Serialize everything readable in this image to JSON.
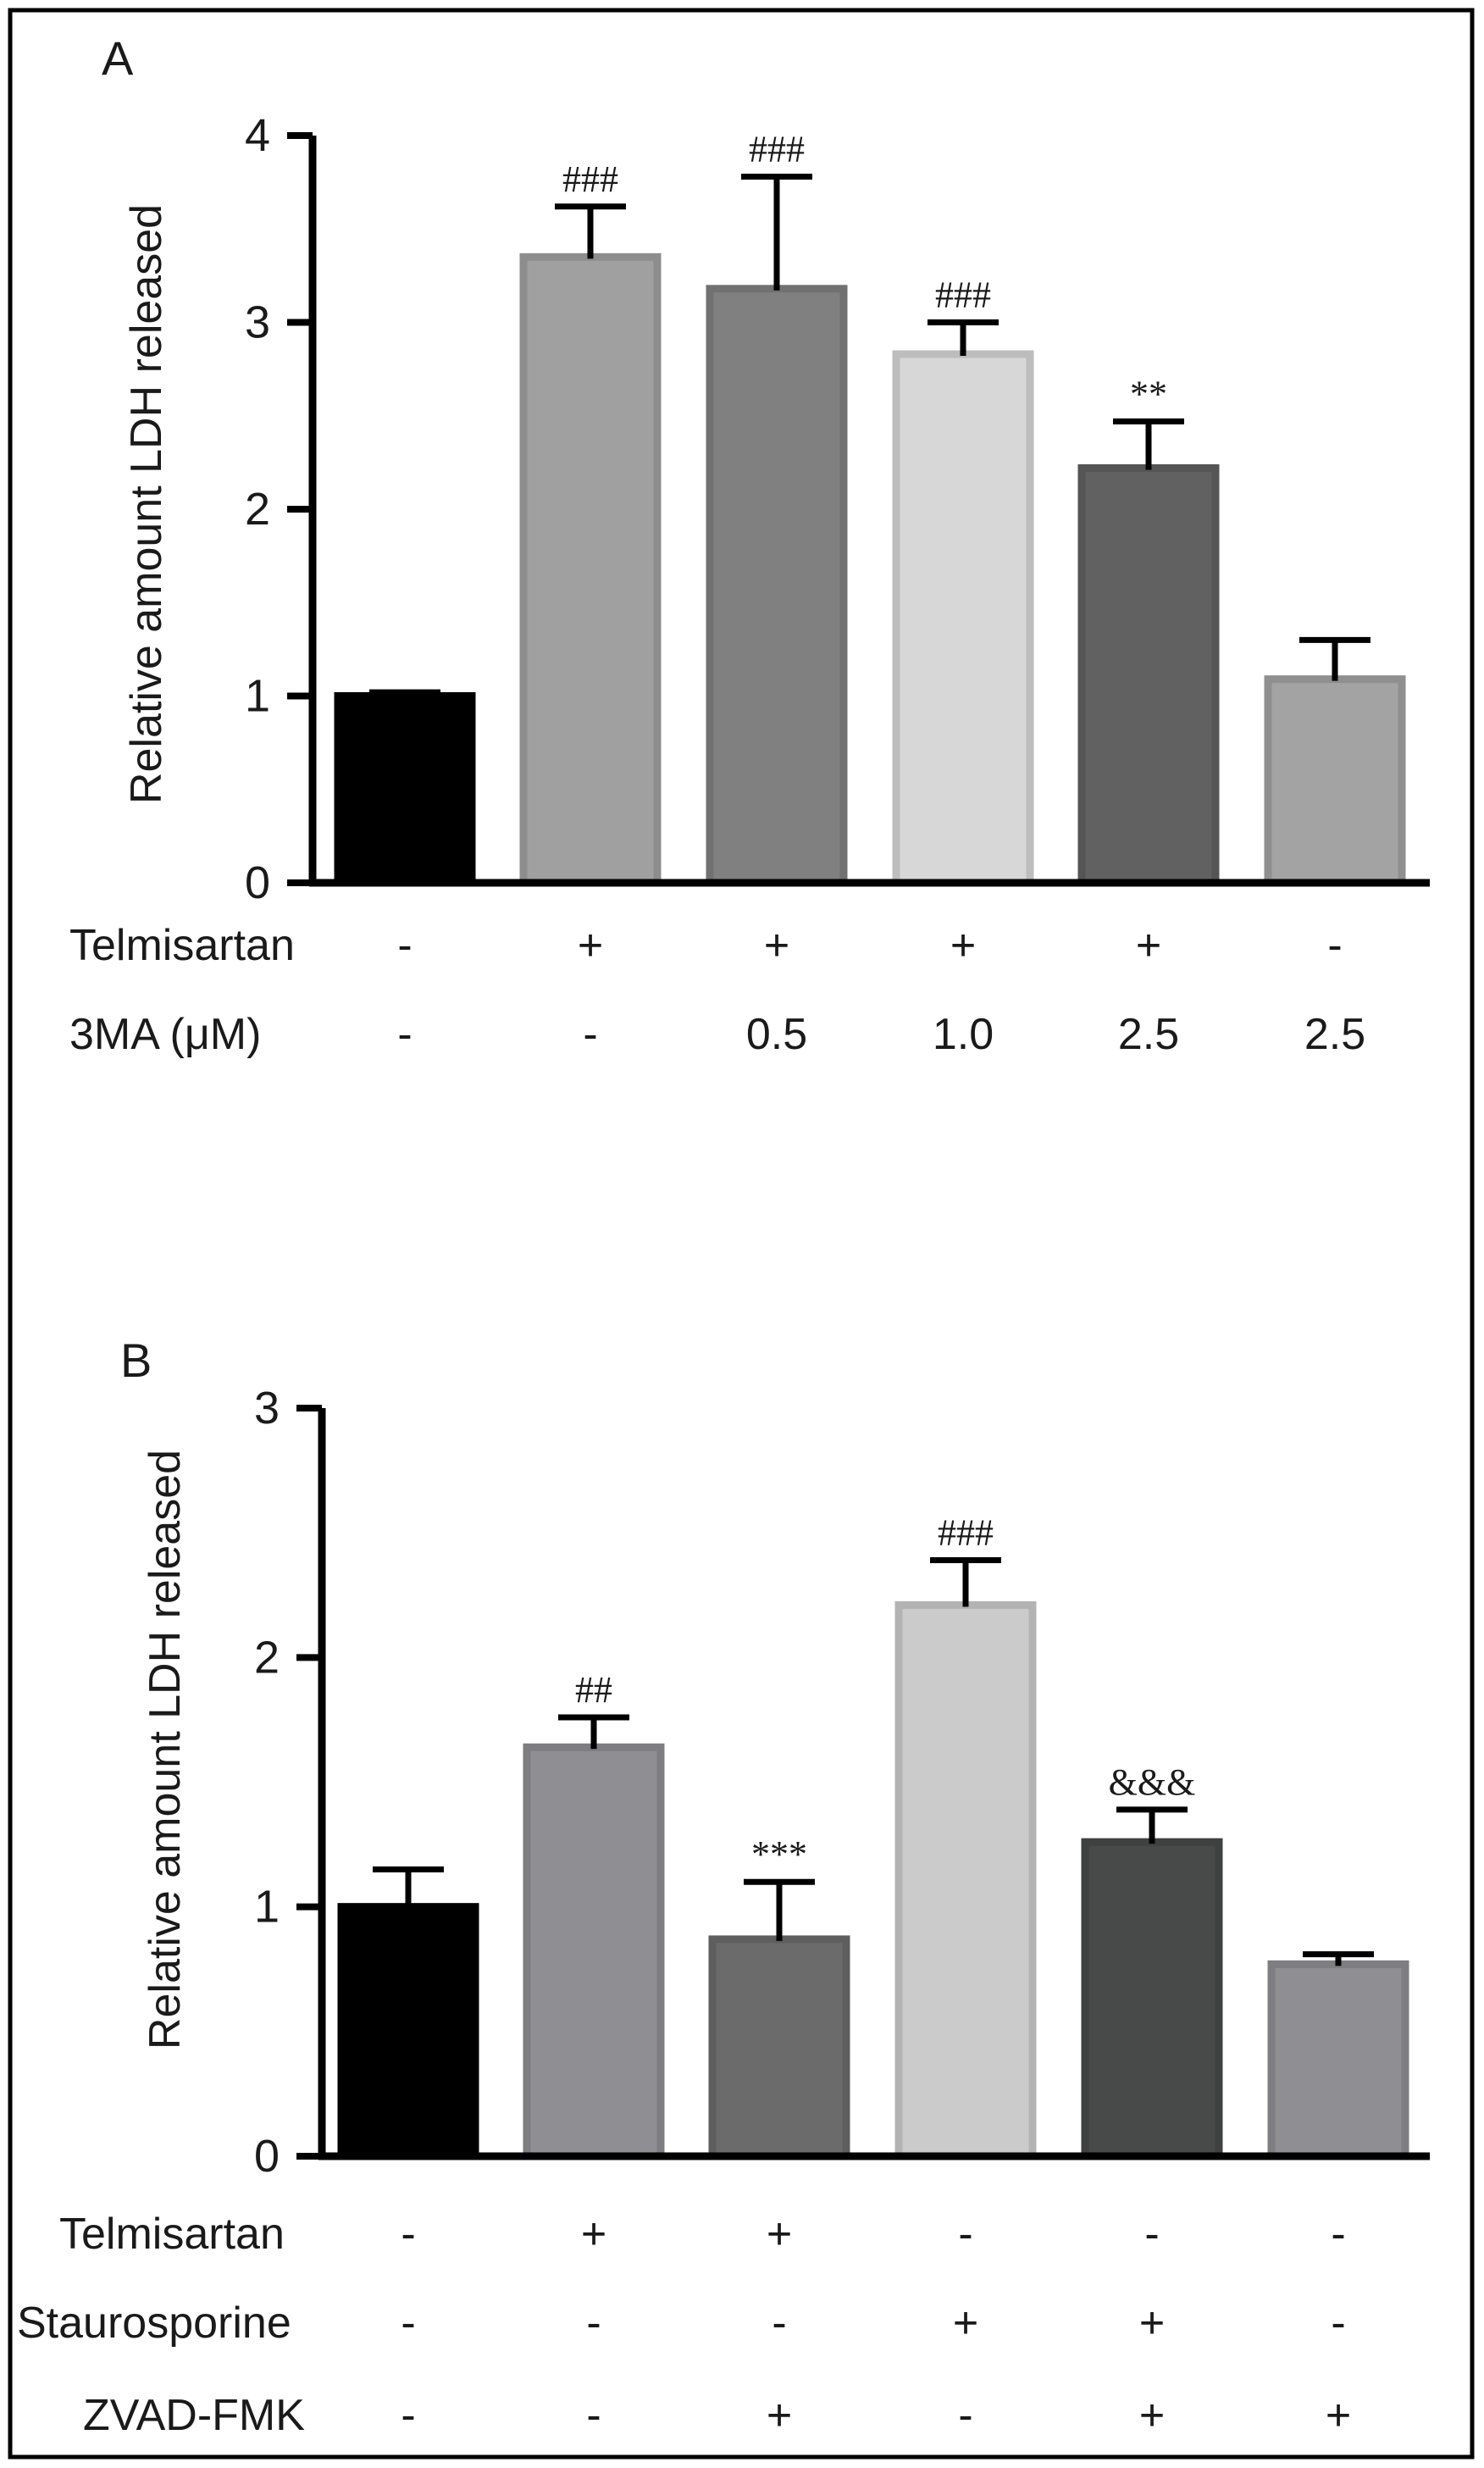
{
  "chart_data": [
    {
      "type": "bar",
      "panel": "A",
      "ylabel": "Relative amount  LDH released",
      "ylim": [
        0,
        4
      ],
      "yticks": [
        0,
        1,
        2,
        3,
        4
      ],
      "grid": false,
      "legend": "none",
      "categories": [
        "1",
        "2",
        "3",
        "4",
        "5",
        "6"
      ],
      "values": [
        1.0,
        3.35,
        3.18,
        2.83,
        2.22,
        1.09
      ],
      "errors": [
        0.02,
        0.27,
        0.6,
        0.17,
        0.25,
        0.21
      ],
      "annotations": [
        "",
        "###",
        "###",
        "###",
        "**",
        ""
      ],
      "colors": [
        "#000000",
        "#a0a0a0",
        "#808080",
        "#d7d7d7",
        "#616161",
        "#a3a3a3"
      ],
      "conditions": [
        {
          "label": "Telmisartan",
          "marks": [
            "-",
            "+",
            "+",
            "+",
            "+",
            "-"
          ]
        },
        {
          "label": "3MA (μM)",
          "marks": [
            "-",
            "-",
            "0.5",
            "1.0",
            "2.5",
            "2.5"
          ]
        }
      ]
    },
    {
      "type": "bar",
      "panel": "B",
      "ylabel": "Relative amount  LDH released",
      "ylim": [
        0,
        3
      ],
      "yticks": [
        0,
        1,
        2,
        3
      ],
      "grid": false,
      "legend": "none",
      "categories": [
        "1",
        "2",
        "3",
        "4",
        "5",
        "6"
      ],
      "values": [
        1.0,
        1.64,
        0.87,
        2.21,
        1.26,
        0.77
      ],
      "errors": [
        0.15,
        0.12,
        0.23,
        0.18,
        0.13,
        0.04
      ],
      "annotations": [
        "",
        "##",
        "***",
        "###",
        "&&&",
        ""
      ],
      "colors": [
        "#000000",
        "#8f8e93",
        "#6b6b6b",
        "#cbcbcb",
        "#484949",
        "#8f8e93"
      ],
      "conditions": [
        {
          "label": "Telmisartan",
          "marks": [
            "-",
            "+",
            "+",
            "-",
            "-",
            "-"
          ]
        },
        {
          "label": "Staurosporine",
          "marks": [
            "-",
            "-",
            "-",
            "+",
            "+",
            "-"
          ]
        },
        {
          "label": "ZVAD-FMK",
          "marks": [
            "-",
            "-",
            "+",
            "-",
            "+",
            "+"
          ]
        }
      ]
    }
  ]
}
